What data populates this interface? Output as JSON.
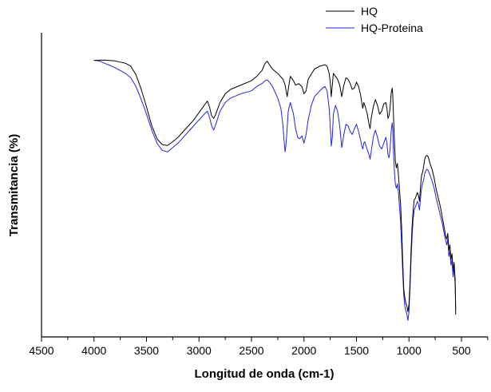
{
  "chart_data": {
    "type": "line",
    "xlabel": "Longitud de onda (cm-1)",
    "ylabel": "Transmitancia (%)",
    "xlim": [
      4500,
      200
    ],
    "ylim": [
      0,
      100
    ],
    "x_inverted": true,
    "y_tick_labels_shown": false,
    "grid": false,
    "legend_position": "top-right",
    "x_ticks": [
      4500,
      4000,
      3500,
      3000,
      2500,
      2000,
      1500,
      1000,
      500
    ],
    "x_tick_labels": [
      "4500",
      "4000",
      "3500",
      "3000",
      "2500",
      "2000",
      "1500",
      "1000",
      "500"
    ],
    "series": [
      {
        "name": "HQ",
        "color": "#000000",
        "points": [
          [
            4000,
            90.5
          ],
          [
            3900,
            90.6
          ],
          [
            3800,
            90.3
          ],
          [
            3700,
            89.5
          ],
          [
            3650,
            88.5
          ],
          [
            3600,
            85.5
          ],
          [
            3550,
            80.5
          ],
          [
            3500,
            74.5
          ],
          [
            3450,
            68
          ],
          [
            3400,
            63.5
          ],
          [
            3350,
            61.5
          ],
          [
            3300,
            61.2
          ],
          [
            3250,
            62.5
          ],
          [
            3200,
            64
          ],
          [
            3150,
            66
          ],
          [
            3100,
            68
          ],
          [
            3050,
            70
          ],
          [
            3000,
            72.5
          ],
          [
            2950,
            75
          ],
          [
            2920,
            76.5
          ],
          [
            2900,
            74.5
          ],
          [
            2880,
            71.5
          ],
          [
            2860,
            70.5
          ],
          [
            2840,
            72
          ],
          [
            2800,
            76
          ],
          [
            2750,
            79
          ],
          [
            2700,
            80.5
          ],
          [
            2600,
            82
          ],
          [
            2500,
            83.5
          ],
          [
            2450,
            85
          ],
          [
            2400,
            87
          ],
          [
            2370,
            89.5
          ],
          [
            2350,
            90.2
          ],
          [
            2330,
            89
          ],
          [
            2300,
            87.5
          ],
          [
            2250,
            86
          ],
          [
            2200,
            84
          ],
          [
            2180,
            82
          ],
          [
            2170,
            80
          ],
          [
            2160,
            78
          ],
          [
            2150,
            80.5
          ],
          [
            2130,
            85
          ],
          [
            2100,
            83.5
          ],
          [
            2080,
            82
          ],
          [
            2050,
            82.5
          ],
          [
            2020,
            81.5
          ],
          [
            2000,
            79
          ],
          [
            1980,
            80
          ],
          [
            1960,
            84
          ],
          [
            1900,
            87.5
          ],
          [
            1850,
            88.5
          ],
          [
            1800,
            89
          ],
          [
            1780,
            88.5
          ],
          [
            1760,
            86
          ],
          [
            1750,
            83
          ],
          [
            1740,
            78
          ],
          [
            1730,
            82
          ],
          [
            1720,
            86
          ],
          [
            1700,
            85
          ],
          [
            1680,
            84
          ],
          [
            1660,
            82
          ],
          [
            1640,
            78
          ],
          [
            1620,
            82
          ],
          [
            1600,
            84.5
          ],
          [
            1580,
            84
          ],
          [
            1560,
            82.5
          ],
          [
            1540,
            80.5
          ],
          [
            1520,
            81
          ],
          [
            1500,
            83
          ],
          [
            1480,
            81.5
          ],
          [
            1460,
            78.5
          ],
          [
            1450,
            76
          ],
          [
            1440,
            74
          ],
          [
            1430,
            76
          ],
          [
            1420,
            75
          ],
          [
            1400,
            72.5
          ],
          [
            1380,
            68.5
          ],
          [
            1370,
            67
          ],
          [
            1360,
            70.5
          ],
          [
            1340,
            74.5
          ],
          [
            1320,
            77
          ],
          [
            1300,
            75
          ],
          [
            1280,
            72
          ],
          [
            1260,
            73
          ],
          [
            1240,
            75.5
          ],
          [
            1220,
            76
          ],
          [
            1210,
            74
          ],
          [
            1200,
            70.5
          ],
          [
            1190,
            71.5
          ],
          [
            1180,
            74
          ],
          [
            1170,
            79
          ],
          [
            1160,
            81
          ],
          [
            1155,
            79
          ],
          [
            1150,
            74
          ],
          [
            1140,
            64
          ],
          [
            1130,
            56
          ],
          [
            1120,
            53.5
          ],
          [
            1110,
            55
          ],
          [
            1100,
            51
          ],
          [
            1090,
            46
          ],
          [
            1080,
            41
          ],
          [
            1070,
            33
          ],
          [
            1060,
            22
          ],
          [
            1050,
            12
          ],
          [
            1040,
            9
          ],
          [
            1030,
            7
          ],
          [
            1020,
            6
          ],
          [
            1010,
            4
          ],
          [
            1000,
            6.5
          ],
          [
            990,
            14
          ],
          [
            980,
            25
          ],
          [
            970,
            33.5
          ],
          [
            960,
            39
          ],
          [
            950,
            42.5
          ],
          [
            940,
            43
          ],
          [
            930,
            44
          ],
          [
            920,
            45
          ],
          [
            910,
            44
          ],
          [
            900,
            42
          ],
          [
            890,
            47
          ],
          [
            880,
            51
          ],
          [
            870,
            52
          ],
          [
            860,
            54
          ],
          [
            850,
            56.5
          ],
          [
            840,
            57.5
          ],
          [
            830,
            57.8
          ],
          [
            820,
            57.5
          ],
          [
            810,
            56.5
          ],
          [
            800,
            55
          ],
          [
            780,
            53
          ],
          [
            760,
            50
          ],
          [
            740,
            46
          ],
          [
            720,
            43
          ],
          [
            700,
            40
          ],
          [
            680,
            36
          ],
          [
            660,
            32
          ],
          [
            650,
            30
          ],
          [
            640,
            29
          ],
          [
            630,
            31
          ],
          [
            620,
            25
          ],
          [
            610,
            27
          ],
          [
            600,
            22
          ],
          [
            590,
            24
          ],
          [
            580,
            18
          ],
          [
            570,
            21
          ],
          [
            560,
            15
          ],
          [
            555,
            3
          ]
        ]
      },
      {
        "name": "HQ-Proteina",
        "color": "#2323e6",
        "points": [
          [
            4000,
            90.5
          ],
          [
            3950,
            90.3
          ],
          [
            3900,
            89.5
          ],
          [
            3850,
            88.8
          ],
          [
            3800,
            88
          ],
          [
            3750,
            87
          ],
          [
            3700,
            86
          ],
          [
            3650,
            84.5
          ],
          [
            3600,
            81.5
          ],
          [
            3550,
            77
          ],
          [
            3500,
            72
          ],
          [
            3450,
            66.5
          ],
          [
            3400,
            62
          ],
          [
            3350,
            59.5
          ],
          [
            3300,
            59
          ],
          [
            3250,
            60.5
          ],
          [
            3200,
            62
          ],
          [
            3150,
            64
          ],
          [
            3100,
            66
          ],
          [
            3050,
            68
          ],
          [
            3000,
            70
          ],
          [
            2950,
            72
          ],
          [
            2920,
            73
          ],
          [
            2900,
            71
          ],
          [
            2880,
            68
          ],
          [
            2860,
            66.5
          ],
          [
            2840,
            68.5
          ],
          [
            2800,
            73
          ],
          [
            2750,
            76
          ],
          [
            2700,
            77.5
          ],
          [
            2600,
            79
          ],
          [
            2500,
            80
          ],
          [
            2450,
            81.5
          ],
          [
            2400,
            82.5
          ],
          [
            2370,
            83.5
          ],
          [
            2350,
            83.8
          ],
          [
            2330,
            83
          ],
          [
            2300,
            81.5
          ],
          [
            2250,
            77.5
          ],
          [
            2220,
            74
          ],
          [
            2200,
            68
          ],
          [
            2190,
            63
          ],
          [
            2180,
            59
          ],
          [
            2170,
            62
          ],
          [
            2150,
            73
          ],
          [
            2130,
            76
          ],
          [
            2100,
            72
          ],
          [
            2080,
            67
          ],
          [
            2060,
            64
          ],
          [
            2040,
            63.5
          ],
          [
            2020,
            64.5
          ],
          [
            2000,
            62
          ],
          [
            1980,
            65
          ],
          [
            1960,
            70
          ],
          [
            1930,
            75
          ],
          [
            1900,
            78
          ],
          [
            1850,
            80
          ],
          [
            1820,
            81
          ],
          [
            1800,
            81.5
          ],
          [
            1780,
            80
          ],
          [
            1760,
            74
          ],
          [
            1750,
            68
          ],
          [
            1740,
            61
          ],
          [
            1730,
            64
          ],
          [
            1720,
            72
          ],
          [
            1700,
            75
          ],
          [
            1680,
            73
          ],
          [
            1660,
            68
          ],
          [
            1640,
            60.5
          ],
          [
            1620,
            65
          ],
          [
            1600,
            68.5
          ],
          [
            1580,
            68
          ],
          [
            1560,
            66
          ],
          [
            1540,
            65
          ],
          [
            1520,
            67
          ],
          [
            1500,
            68.5
          ],
          [
            1480,
            66
          ],
          [
            1460,
            63
          ],
          [
            1450,
            61
          ],
          [
            1440,
            60
          ],
          [
            1430,
            62
          ],
          [
            1420,
            62.5
          ],
          [
            1400,
            60
          ],
          [
            1380,
            58
          ],
          [
            1370,
            56.5
          ],
          [
            1360,
            59
          ],
          [
            1340,
            64
          ],
          [
            1320,
            66.5
          ],
          [
            1300,
            64
          ],
          [
            1280,
            61
          ],
          [
            1260,
            60
          ],
          [
            1240,
            62
          ],
          [
            1220,
            64
          ],
          [
            1210,
            62
          ],
          [
            1200,
            58
          ],
          [
            1190,
            57
          ],
          [
            1180,
            60
          ],
          [
            1170,
            66
          ],
          [
            1160,
            69
          ],
          [
            1155,
            67
          ],
          [
            1150,
            61
          ],
          [
            1140,
            53
          ],
          [
            1130,
            48
          ],
          [
            1120,
            46.5
          ],
          [
            1110,
            48
          ],
          [
            1100,
            45
          ],
          [
            1090,
            40
          ],
          [
            1080,
            35
          ],
          [
            1070,
            27
          ],
          [
            1060,
            18
          ],
          [
            1050,
            10
          ],
          [
            1040,
            6
          ],
          [
            1030,
            4.5
          ],
          [
            1020,
            3
          ],
          [
            1010,
            1
          ],
          [
            1000,
            4
          ],
          [
            990,
            12
          ],
          [
            980,
            22
          ],
          [
            970,
            30
          ],
          [
            960,
            36
          ],
          [
            950,
            39
          ],
          [
            940,
            40
          ],
          [
            930,
            41
          ],
          [
            920,
            42
          ],
          [
            910,
            41
          ],
          [
            900,
            39
          ],
          [
            890,
            43
          ],
          [
            880,
            46.5
          ],
          [
            870,
            48
          ],
          [
            860,
            49.5
          ],
          [
            850,
            51.5
          ],
          [
            840,
            52.5
          ],
          [
            830,
            53
          ],
          [
            820,
            52.8
          ],
          [
            810,
            52
          ],
          [
            800,
            51
          ],
          [
            780,
            49
          ],
          [
            760,
            46.5
          ],
          [
            740,
            43
          ],
          [
            720,
            40
          ],
          [
            700,
            37
          ],
          [
            680,
            34
          ],
          [
            660,
            30
          ],
          [
            650,
            28.5
          ],
          [
            640,
            27
          ],
          [
            630,
            29
          ],
          [
            620,
            23
          ],
          [
            610,
            25
          ],
          [
            600,
            20
          ],
          [
            590,
            22
          ],
          [
            580,
            16
          ],
          [
            570,
            19
          ],
          [
            560,
            13
          ],
          [
            555,
            5
          ]
        ]
      }
    ]
  }
}
